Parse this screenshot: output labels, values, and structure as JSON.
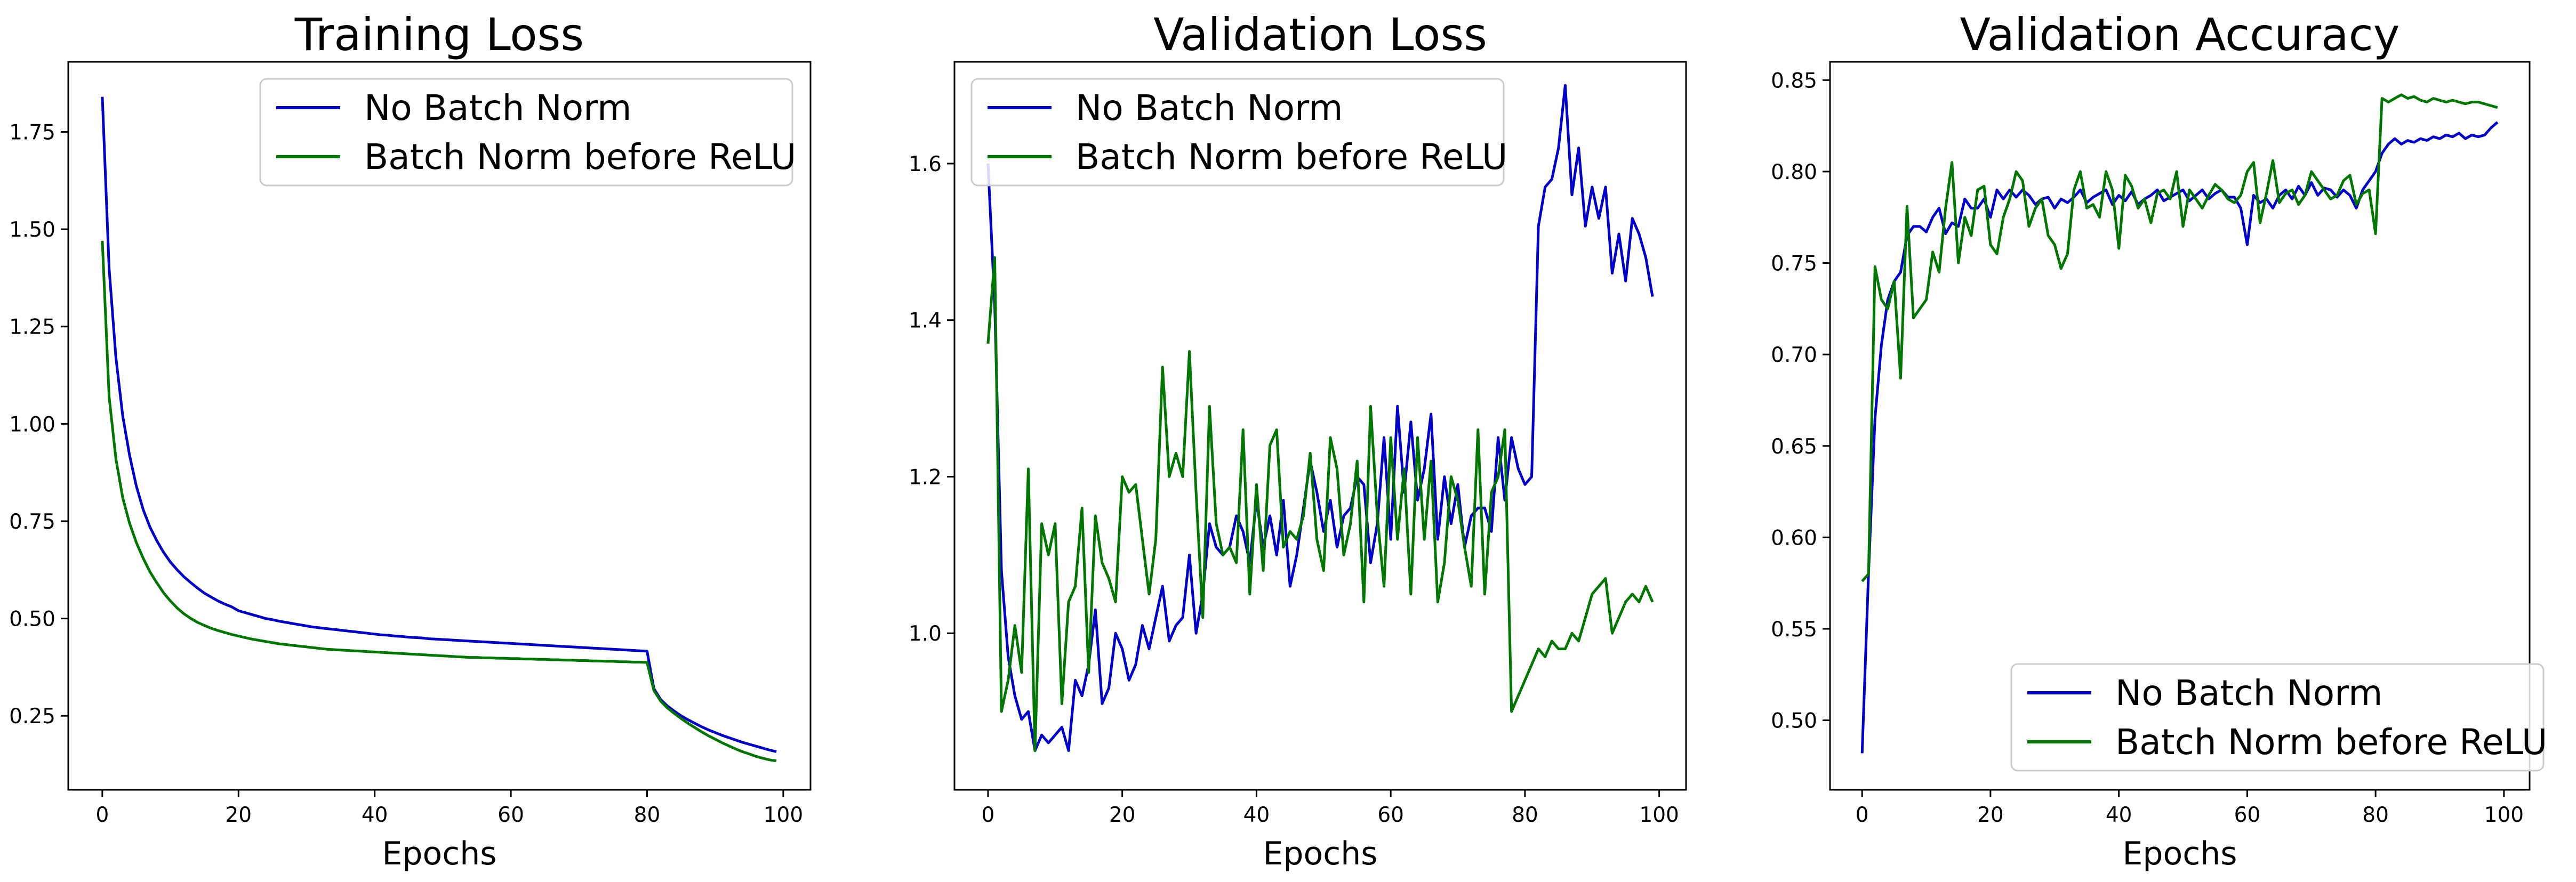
{
  "figure": {
    "panels": [
      {
        "title": "Training Loss",
        "xlabel": "Epochs",
        "ylabel": ""
      },
      {
        "title": "Validation Loss",
        "xlabel": "Epochs",
        "ylabel": ""
      },
      {
        "title": "Validation Accuracy",
        "xlabel": "Epochs",
        "ylabel": ""
      }
    ]
  },
  "chart_data": [
    {
      "type": "line",
      "title": "Training Loss",
      "xlabel": "Epochs",
      "ylabel": "",
      "xlim": [
        -5,
        104
      ],
      "ylim": [
        0.06,
        1.93
      ],
      "xticks": [
        0,
        20,
        40,
        60,
        80,
        100
      ],
      "yticks": [
        0.25,
        0.5,
        0.75,
        1.0,
        1.25,
        1.5,
        1.75
      ],
      "ytick_format": 2,
      "legend": "top-right",
      "grid": false,
      "series": [
        {
          "name": "No Batch Norm",
          "color": "#0000cc",
          "values": [
            1.84,
            1.4,
            1.17,
            1.02,
            0.92,
            0.84,
            0.78,
            0.735,
            0.7,
            0.67,
            0.645,
            0.625,
            0.607,
            0.592,
            0.578,
            0.565,
            0.555,
            0.545,
            0.537,
            0.53,
            0.52,
            0.515,
            0.51,
            0.505,
            0.5,
            0.497,
            0.493,
            0.49,
            0.487,
            0.484,
            0.481,
            0.478,
            0.476,
            0.474,
            0.472,
            0.47,
            0.468,
            0.466,
            0.464,
            0.462,
            0.46,
            0.458,
            0.457,
            0.455,
            0.454,
            0.452,
            0.451,
            0.45,
            0.448,
            0.447,
            0.446,
            0.445,
            0.444,
            0.443,
            0.442,
            0.441,
            0.44,
            0.439,
            0.438,
            0.437,
            0.436,
            0.435,
            0.434,
            0.433,
            0.432,
            0.431,
            0.43,
            0.429,
            0.428,
            0.427,
            0.426,
            0.425,
            0.424,
            0.423,
            0.422,
            0.421,
            0.42,
            0.419,
            0.418,
            0.417,
            0.416,
            0.32,
            0.292,
            0.275,
            0.262,
            0.25,
            0.24,
            0.231,
            0.222,
            0.214,
            0.207,
            0.2,
            0.194,
            0.188,
            0.182,
            0.177,
            0.172,
            0.167,
            0.162,
            0.158
          ]
        },
        {
          "name": "Batch Norm before ReLU",
          "color": "#007700",
          "values": [
            1.47,
            1.07,
            0.91,
            0.81,
            0.745,
            0.695,
            0.655,
            0.62,
            0.592,
            0.566,
            0.545,
            0.527,
            0.512,
            0.5,
            0.49,
            0.482,
            0.475,
            0.469,
            0.464,
            0.459,
            0.455,
            0.451,
            0.447,
            0.444,
            0.441,
            0.438,
            0.435,
            0.433,
            0.431,
            0.429,
            0.427,
            0.425,
            0.423,
            0.421,
            0.42,
            0.419,
            0.418,
            0.417,
            0.416,
            0.415,
            0.414,
            0.413,
            0.412,
            0.411,
            0.41,
            0.409,
            0.408,
            0.407,
            0.406,
            0.405,
            0.404,
            0.403,
            0.402,
            0.401,
            0.4,
            0.4,
            0.399,
            0.399,
            0.398,
            0.398,
            0.397,
            0.397,
            0.396,
            0.396,
            0.395,
            0.395,
            0.394,
            0.394,
            0.393,
            0.393,
            0.392,
            0.392,
            0.391,
            0.391,
            0.39,
            0.39,
            0.389,
            0.389,
            0.388,
            0.388,
            0.387,
            0.315,
            0.288,
            0.27,
            0.256,
            0.243,
            0.231,
            0.22,
            0.209,
            0.199,
            0.19,
            0.181,
            0.173,
            0.165,
            0.158,
            0.152,
            0.146,
            0.141,
            0.137,
            0.134
          ]
        }
      ]
    },
    {
      "type": "line",
      "title": "Validation Loss",
      "xlabel": "Epochs",
      "ylabel": "",
      "xlim": [
        -5,
        104
      ],
      "ylim": [
        0.8,
        1.73
      ],
      "xticks": [
        0,
        20,
        40,
        60,
        80,
        100
      ],
      "yticks": [
        1.0,
        1.2,
        1.4,
        1.6
      ],
      "ytick_format": 1,
      "legend": "top-left",
      "grid": false,
      "series": [
        {
          "name": "No Batch Norm",
          "color": "#0000cc",
          "values": [
            1.6,
            1.42,
            1.08,
            0.97,
            0.92,
            0.89,
            0.9,
            0.85,
            0.87,
            0.86,
            0.87,
            0.88,
            0.85,
            0.94,
            0.92,
            0.96,
            1.03,
            0.91,
            0.93,
            1.0,
            0.98,
            0.94,
            0.96,
            1.01,
            0.98,
            1.02,
            1.06,
            0.99,
            1.01,
            1.02,
            1.1,
            1.0,
            1.05,
            1.14,
            1.11,
            1.1,
            1.11,
            1.15,
            1.13,
            1.09,
            1.17,
            1.11,
            1.15,
            1.1,
            1.17,
            1.06,
            1.1,
            1.16,
            1.22,
            1.18,
            1.13,
            1.17,
            1.11,
            1.15,
            1.16,
            1.2,
            1.19,
            1.09,
            1.14,
            1.25,
            1.12,
            1.29,
            1.18,
            1.27,
            1.17,
            1.21,
            1.28,
            1.12,
            1.2,
            1.14,
            1.19,
            1.11,
            1.15,
            1.16,
            1.16,
            1.13,
            1.25,
            1.17,
            1.25,
            1.21,
            1.19,
            1.2,
            1.52,
            1.57,
            1.58,
            1.62,
            1.7,
            1.56,
            1.62,
            1.52,
            1.57,
            1.53,
            1.57,
            1.46,
            1.51,
            1.45,
            1.53,
            1.51,
            1.48,
            1.43
          ]
        },
        {
          "name": "Batch Norm before ReLU",
          "color": "#007700",
          "values": [
            1.37,
            1.48,
            0.9,
            0.94,
            1.01,
            0.95,
            1.21,
            0.85,
            1.14,
            1.1,
            1.14,
            0.91,
            1.04,
            1.06,
            1.16,
            0.95,
            1.15,
            1.09,
            1.07,
            1.04,
            1.2,
            1.18,
            1.19,
            1.12,
            1.05,
            1.12,
            1.34,
            1.2,
            1.23,
            1.2,
            1.36,
            1.18,
            1.02,
            1.29,
            1.14,
            1.1,
            1.11,
            1.09,
            1.26,
            1.05,
            1.19,
            1.08,
            1.24,
            1.26,
            1.11,
            1.13,
            1.12,
            1.15,
            1.23,
            1.12,
            1.08,
            1.25,
            1.21,
            1.1,
            1.14,
            1.22,
            1.04,
            1.29,
            1.15,
            1.06,
            1.25,
            1.12,
            1.21,
            1.05,
            1.25,
            1.12,
            1.22,
            1.04,
            1.09,
            1.2,
            1.17,
            1.11,
            1.06,
            1.26,
            1.05,
            1.18,
            1.2,
            1.26,
            0.9,
            0.92,
            0.94,
            0.96,
            0.98,
            0.97,
            0.99,
            0.98,
            0.98,
            1.0,
            0.99,
            1.02,
            1.05,
            1.06,
            1.07,
            1.0,
            1.02,
            1.04,
            1.05,
            1.04,
            1.06,
            1.04
          ]
        }
      ]
    },
    {
      "type": "line",
      "title": "Validation Accuracy",
      "xlabel": "Epochs",
      "ylabel": "",
      "xlim": [
        -5,
        104
      ],
      "ylim": [
        0.462,
        0.86
      ],
      "xticks": [
        0,
        20,
        40,
        60,
        80,
        100
      ],
      "yticks": [
        0.5,
        0.55,
        0.6,
        0.65,
        0.7,
        0.75,
        0.8,
        0.85
      ],
      "ytick_format": 2,
      "legend": "bottom-right",
      "grid": false,
      "series": [
        {
          "name": "No Batch Norm",
          "color": "#0000cc",
          "values": [
            0.482,
            0.58,
            0.665,
            0.705,
            0.73,
            0.74,
            0.745,
            0.765,
            0.77,
            0.77,
            0.767,
            0.775,
            0.78,
            0.766,
            0.772,
            0.77,
            0.785,
            0.78,
            0.78,
            0.785,
            0.775,
            0.79,
            0.785,
            0.79,
            0.786,
            0.79,
            0.787,
            0.782,
            0.785,
            0.786,
            0.78,
            0.785,
            0.783,
            0.786,
            0.79,
            0.783,
            0.786,
            0.788,
            0.79,
            0.782,
            0.787,
            0.784,
            0.789,
            0.782,
            0.785,
            0.787,
            0.79,
            0.784,
            0.786,
            0.788,
            0.79,
            0.784,
            0.787,
            0.79,
            0.785,
            0.788,
            0.79,
            0.786,
            0.786,
            0.78,
            0.76,
            0.787,
            0.783,
            0.785,
            0.78,
            0.787,
            0.79,
            0.785,
            0.792,
            0.787,
            0.794,
            0.787,
            0.791,
            0.79,
            0.786,
            0.79,
            0.787,
            0.78,
            0.79,
            0.795,
            0.8,
            0.81,
            0.815,
            0.818,
            0.815,
            0.817,
            0.816,
            0.818,
            0.817,
            0.819,
            0.818,
            0.82,
            0.819,
            0.821,
            0.818,
            0.82,
            0.819,
            0.82,
            0.824,
            0.827
          ]
        },
        {
          "name": "Batch Norm before ReLU",
          "color": "#007700",
          "values": [
            0.576,
            0.58,
            0.748,
            0.73,
            0.725,
            0.74,
            0.687,
            0.781,
            0.72,
            0.725,
            0.73,
            0.756,
            0.745,
            0.78,
            0.805,
            0.75,
            0.775,
            0.765,
            0.79,
            0.792,
            0.76,
            0.755,
            0.775,
            0.785,
            0.8,
            0.795,
            0.77,
            0.78,
            0.785,
            0.765,
            0.76,
            0.747,
            0.755,
            0.79,
            0.8,
            0.78,
            0.782,
            0.775,
            0.8,
            0.79,
            0.758,
            0.798,
            0.792,
            0.78,
            0.785,
            0.772,
            0.788,
            0.79,
            0.785,
            0.8,
            0.77,
            0.79,
            0.785,
            0.78,
            0.787,
            0.793,
            0.79,
            0.785,
            0.783,
            0.787,
            0.8,
            0.805,
            0.772,
            0.788,
            0.806,
            0.783,
            0.788,
            0.79,
            0.782,
            0.787,
            0.8,
            0.795,
            0.79,
            0.785,
            0.787,
            0.795,
            0.798,
            0.782,
            0.788,
            0.79,
            0.766,
            0.84,
            0.838,
            0.84,
            0.842,
            0.84,
            0.841,
            0.839,
            0.838,
            0.84,
            0.839,
            0.838,
            0.839,
            0.838,
            0.837,
            0.838,
            0.838,
            0.837,
            0.836,
            0.835
          ]
        }
      ]
    }
  ]
}
